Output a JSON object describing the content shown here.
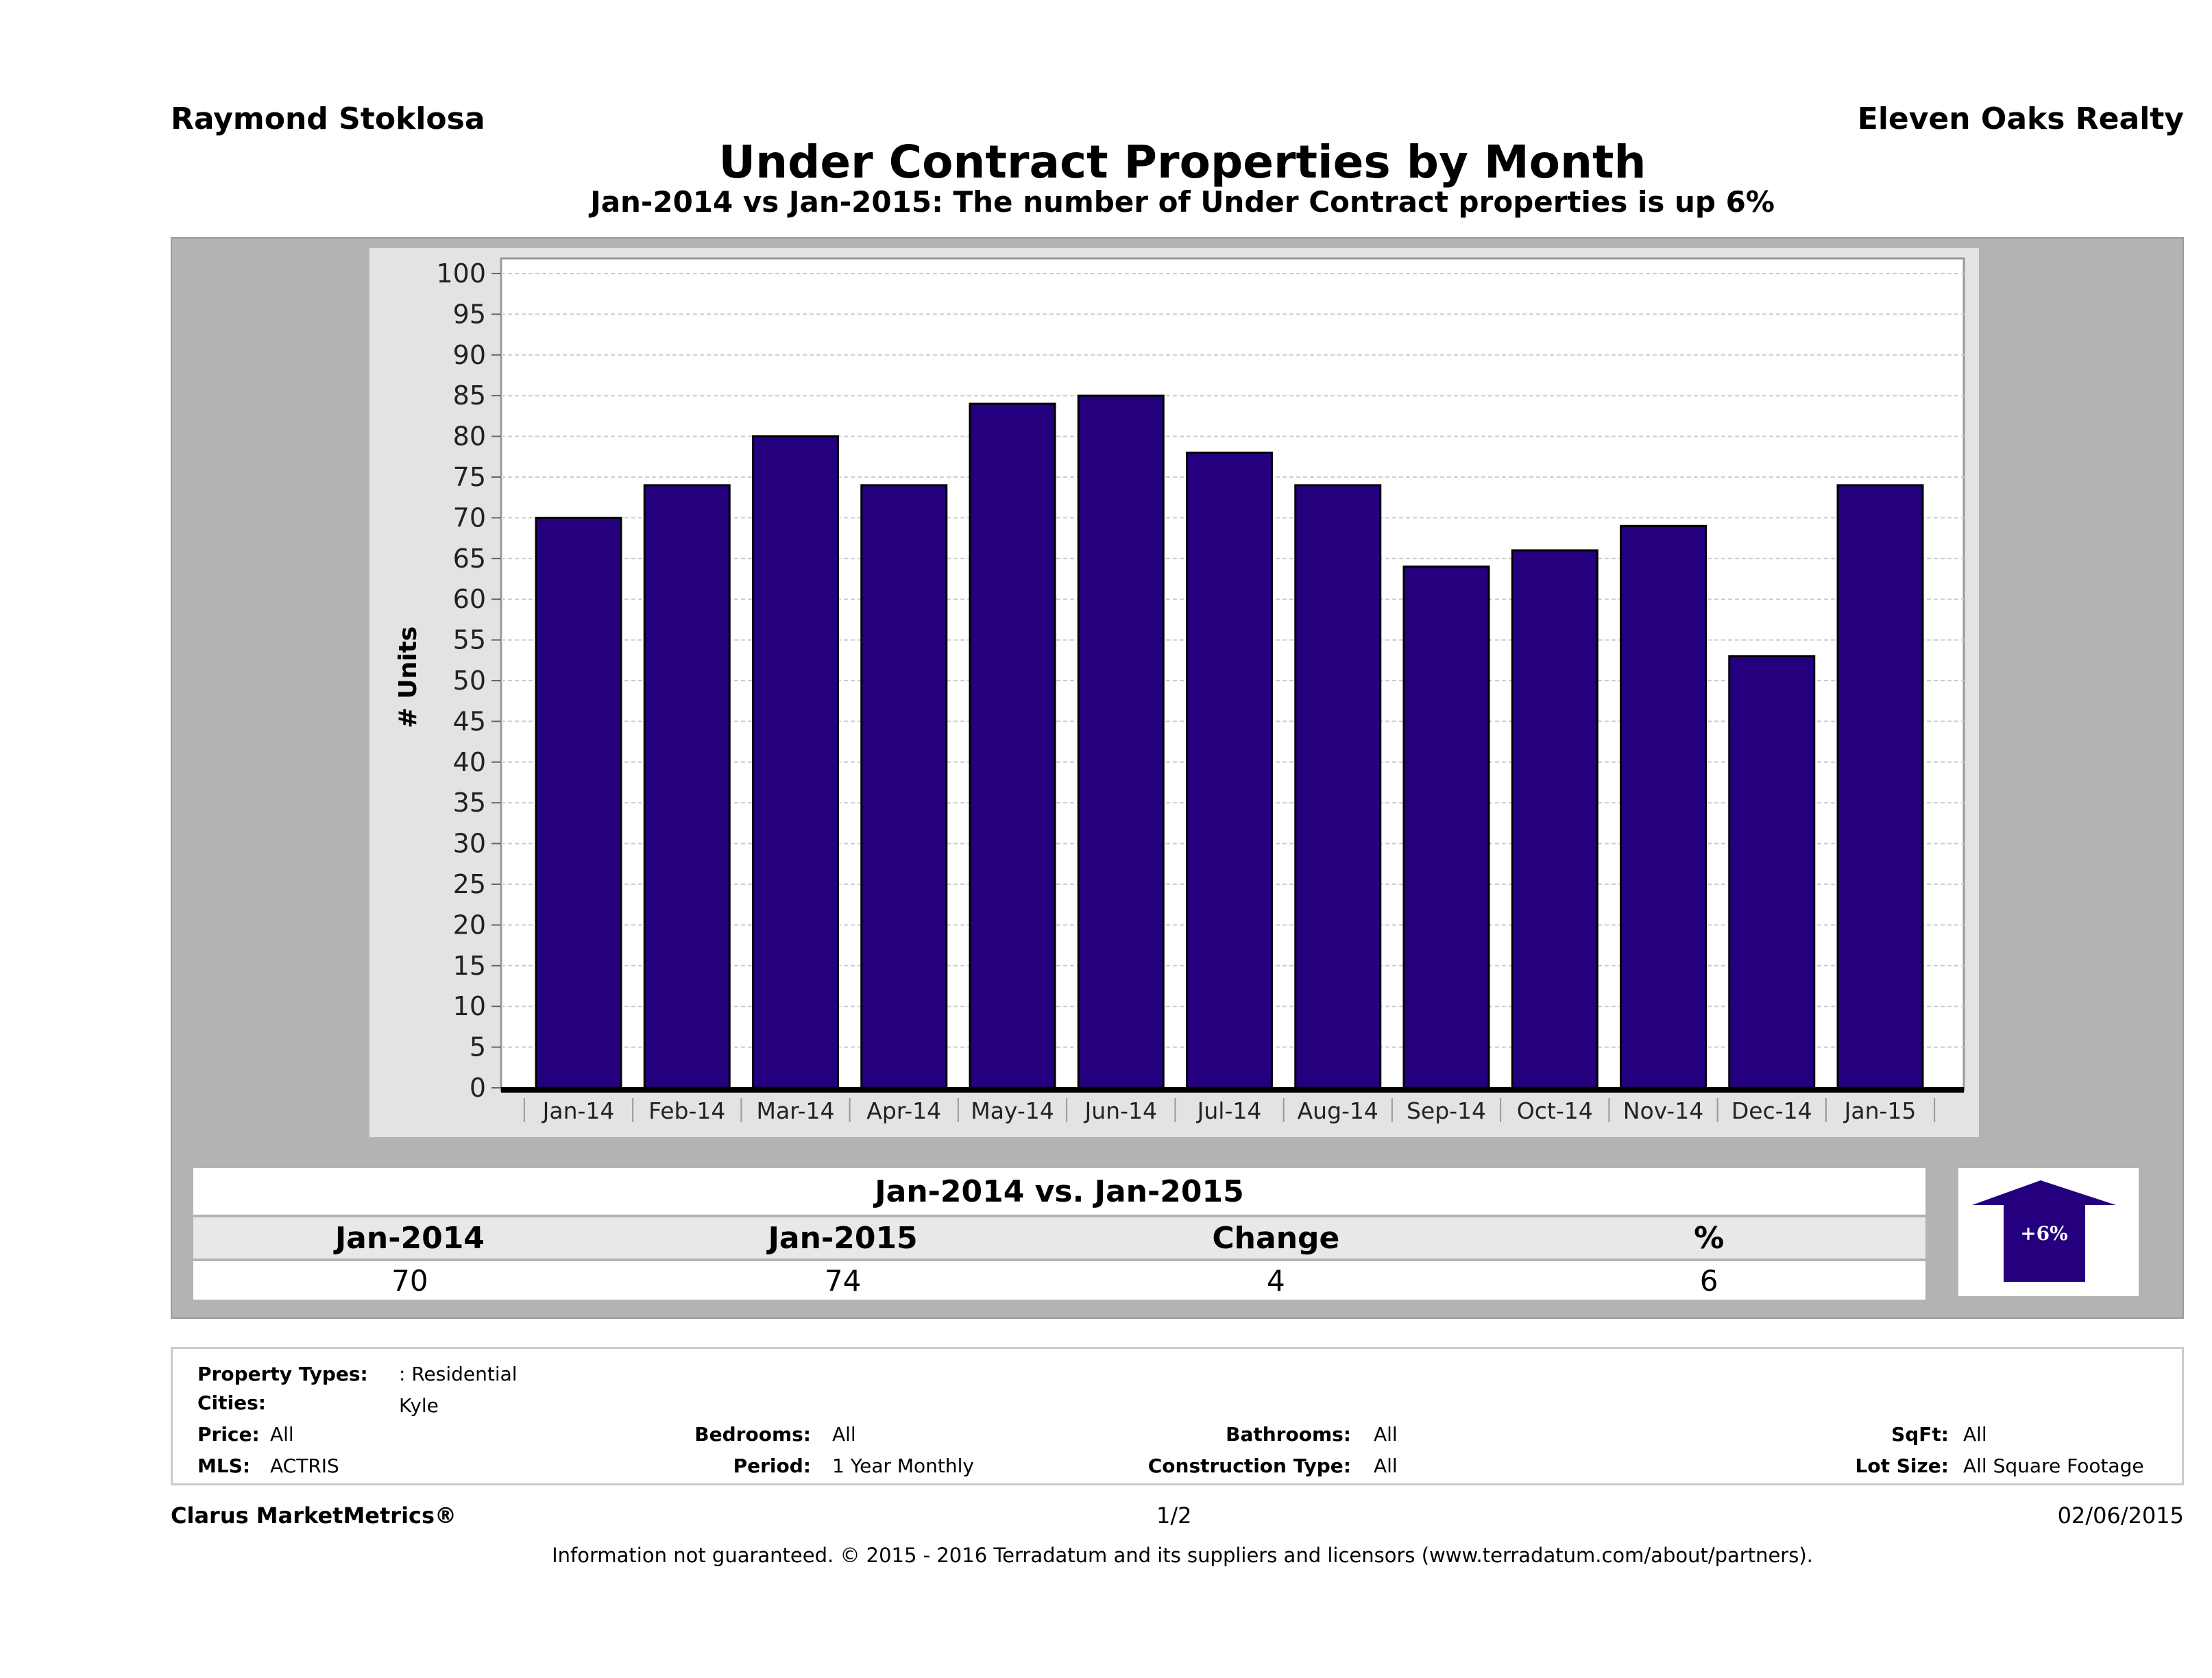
{
  "header": {
    "agent": "Raymond Stoklosa",
    "company": "Eleven Oaks Realty"
  },
  "chart_data": {
    "type": "bar",
    "title": "Under Contract Properties by Month",
    "subtitle": "Jan-2014 vs Jan-2015: The number of Under Contract  properties is up 6%",
    "ylabel": "# Units",
    "xlabel": "",
    "ylim": [
      0,
      100
    ],
    "ytick_step": 5,
    "grid": true,
    "bar_color": "#24007f",
    "categories": [
      "Jan-14",
      "Feb-14",
      "Mar-14",
      "Apr-14",
      "May-14",
      "Jun-14",
      "Jul-14",
      "Aug-14",
      "Sep-14",
      "Oct-14",
      "Nov-14",
      "Dec-14",
      "Jan-15"
    ],
    "values": [
      70,
      74,
      80,
      74,
      84,
      85,
      78,
      74,
      64,
      66,
      69,
      53,
      74
    ]
  },
  "stats": {
    "heading": "Jan-2014 vs. Jan-2015",
    "labels": [
      "Jan-2014",
      "Jan-2015",
      "Change",
      "%"
    ],
    "values": [
      "70",
      "74",
      "4",
      "6"
    ],
    "arrow_label": "+6%",
    "arrow_direction": "up",
    "arrow_color": "#24007f"
  },
  "info": {
    "property_types_label": "Property Types:",
    "property_types": ": Residential",
    "cities_label": "Cities:",
    "cities": "Kyle",
    "price_label": "Price:",
    "price": "All",
    "bedrooms_label": "Bedrooms:",
    "bedrooms": "All",
    "bathrooms_label": "Bathrooms:",
    "bathrooms": "All",
    "sqft_label": "SqFt:",
    "sqft": "All",
    "mls_label": "MLS:",
    "mls": "ACTRIS",
    "period_label": "Period:",
    "period": "1 Year Monthly",
    "construction_label": "Construction Type:",
    "construction": "All",
    "lot_label": "Lot Size:",
    "lot": "All Square Footage"
  },
  "footer": {
    "brand": "Clarus MarketMetrics®",
    "page": "1/2",
    "date": "02/06/2015",
    "disclaimer": "Information not guaranteed. © 2015 - 2016 Terradatum and its suppliers and licensors (www.terradatum.com/about/partners)."
  }
}
